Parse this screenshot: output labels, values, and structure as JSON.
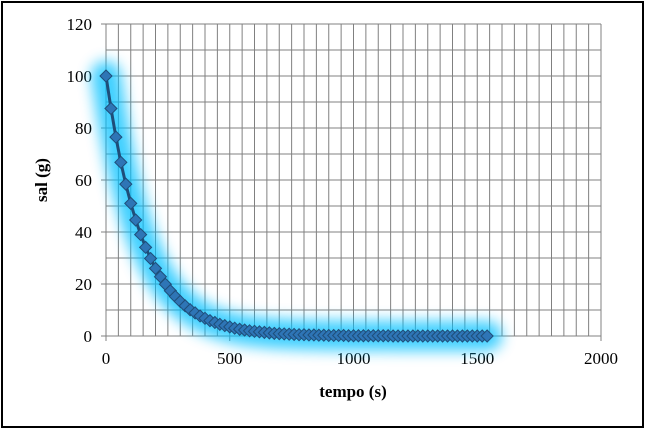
{
  "chart_data": {
    "type": "scatter",
    "title": "",
    "xlabel": "tempo (s)",
    "ylabel": "sal (g)",
    "xlim": [
      0,
      2000
    ],
    "ylim": [
      0,
      120
    ],
    "x_major_ticks": [
      0,
      500,
      1000,
      1500,
      2000
    ],
    "y_major_ticks": [
      0,
      20,
      40,
      60,
      80,
      100,
      120
    ],
    "x_minor_step": 50,
    "y_minor_step": 10,
    "grid": true,
    "legend": "none",
    "series": [
      {
        "color": "#2E75B6",
        "edge_color": "#1F4E79",
        "glow_color": "#00C0FF",
        "marker": "diamond",
        "line": true,
        "x": [
          0,
          20,
          40,
          60,
          80,
          100,
          120,
          140,
          160,
          180,
          200,
          220,
          240,
          260,
          280,
          300,
          320,
          340,
          360,
          380,
          400,
          420,
          440,
          460,
          480,
          500,
          520,
          540,
          560,
          580,
          600,
          620,
          640,
          660,
          680,
          700,
          720,
          740,
          760,
          780,
          800,
          820,
          840,
          860,
          880,
          900,
          920,
          940,
          960,
          980,
          1000,
          1020,
          1040,
          1060,
          1080,
          1100,
          1120,
          1140,
          1160,
          1180,
          1200,
          1220,
          1240,
          1260,
          1280,
          1300,
          1320,
          1340,
          1360,
          1380,
          1400,
          1420,
          1440,
          1460,
          1480,
          1500,
          1520,
          1540
        ],
        "y": [
          100,
          87.5,
          76.5,
          66.8,
          58.4,
          51.0,
          44.6,
          39.0,
          34.1,
          29.8,
          26.0,
          22.8,
          19.9,
          17.4,
          15.2,
          13.3,
          11.6,
          10.1,
          8.9,
          7.7,
          6.8,
          5.9,
          5.2,
          4.5,
          4.0,
          3.5,
          3.0,
          2.6,
          2.3,
          2.0,
          1.8,
          1.6,
          1.4,
          1.2,
          1.0,
          0.9,
          0.8,
          0.7,
          0.6,
          0.5,
          0.5,
          0.4,
          0.4,
          0.3,
          0.3,
          0.2,
          0.2,
          0.2,
          0.2,
          0.1,
          0.1,
          0.1,
          0.1,
          0.1,
          0.1,
          0.1,
          0.1,
          0.1,
          0,
          0,
          0,
          0,
          0,
          0,
          0,
          0,
          0,
          0,
          0,
          0,
          0,
          0,
          0,
          0,
          0,
          0,
          0,
          0
        ]
      }
    ]
  }
}
